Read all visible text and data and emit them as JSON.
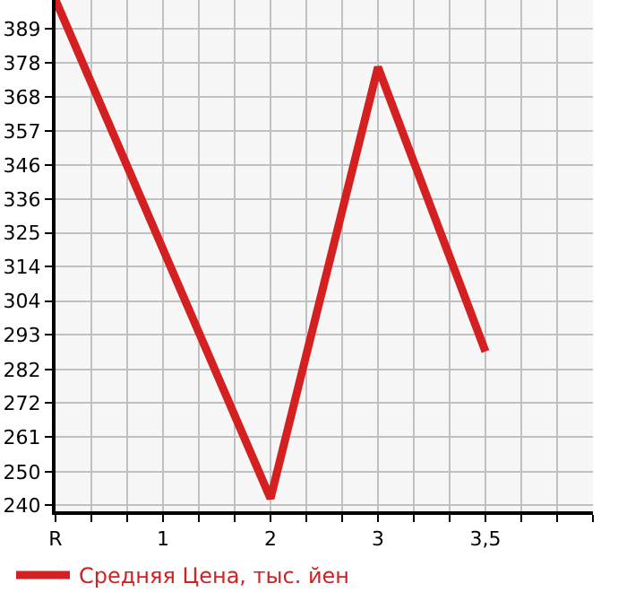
{
  "chart_data": {
    "type": "line",
    "categories": [
      "R",
      null,
      null,
      "1",
      null,
      null,
      "2",
      null,
      null,
      "3",
      null,
      null,
      "3,5",
      null,
      null,
      null
    ],
    "series": [
      {
        "name": "Средняя Цена, тыс. йен",
        "color": "#d42020",
        "values": [
          398,
          null,
          null,
          null,
          null,
          null,
          242,
          null,
          null,
          377,
          null,
          null,
          288,
          null,
          null,
          null
        ]
      }
    ],
    "ylim": [
      238,
      398
    ],
    "yticks": [
      240,
      {
        "value": 250.4,
        "label": "250"
      },
      {
        "value": 261.3,
        "label": "261"
      },
      {
        "value": 271.9,
        "label": "272"
      },
      {
        "value": 282.4,
        "label": "282"
      },
      {
        "value": 293.2,
        "label": "293"
      },
      {
        "value": 303.8,
        "label": "304"
      },
      {
        "value": 314.5,
        "label": "314"
      },
      {
        "value": 325.1,
        "label": "325"
      },
      {
        "value": 335.7,
        "label": "336"
      },
      {
        "value": 346.4,
        "label": "346"
      },
      {
        "value": 357,
        "label": "357"
      },
      {
        "value": 367.7,
        "label": "368"
      },
      {
        "value": 378.3,
        "label": "378"
      },
      389
    ],
    "grid": true,
    "legend": "bottom left",
    "marker": "none",
    "line_style": "solid"
  }
}
